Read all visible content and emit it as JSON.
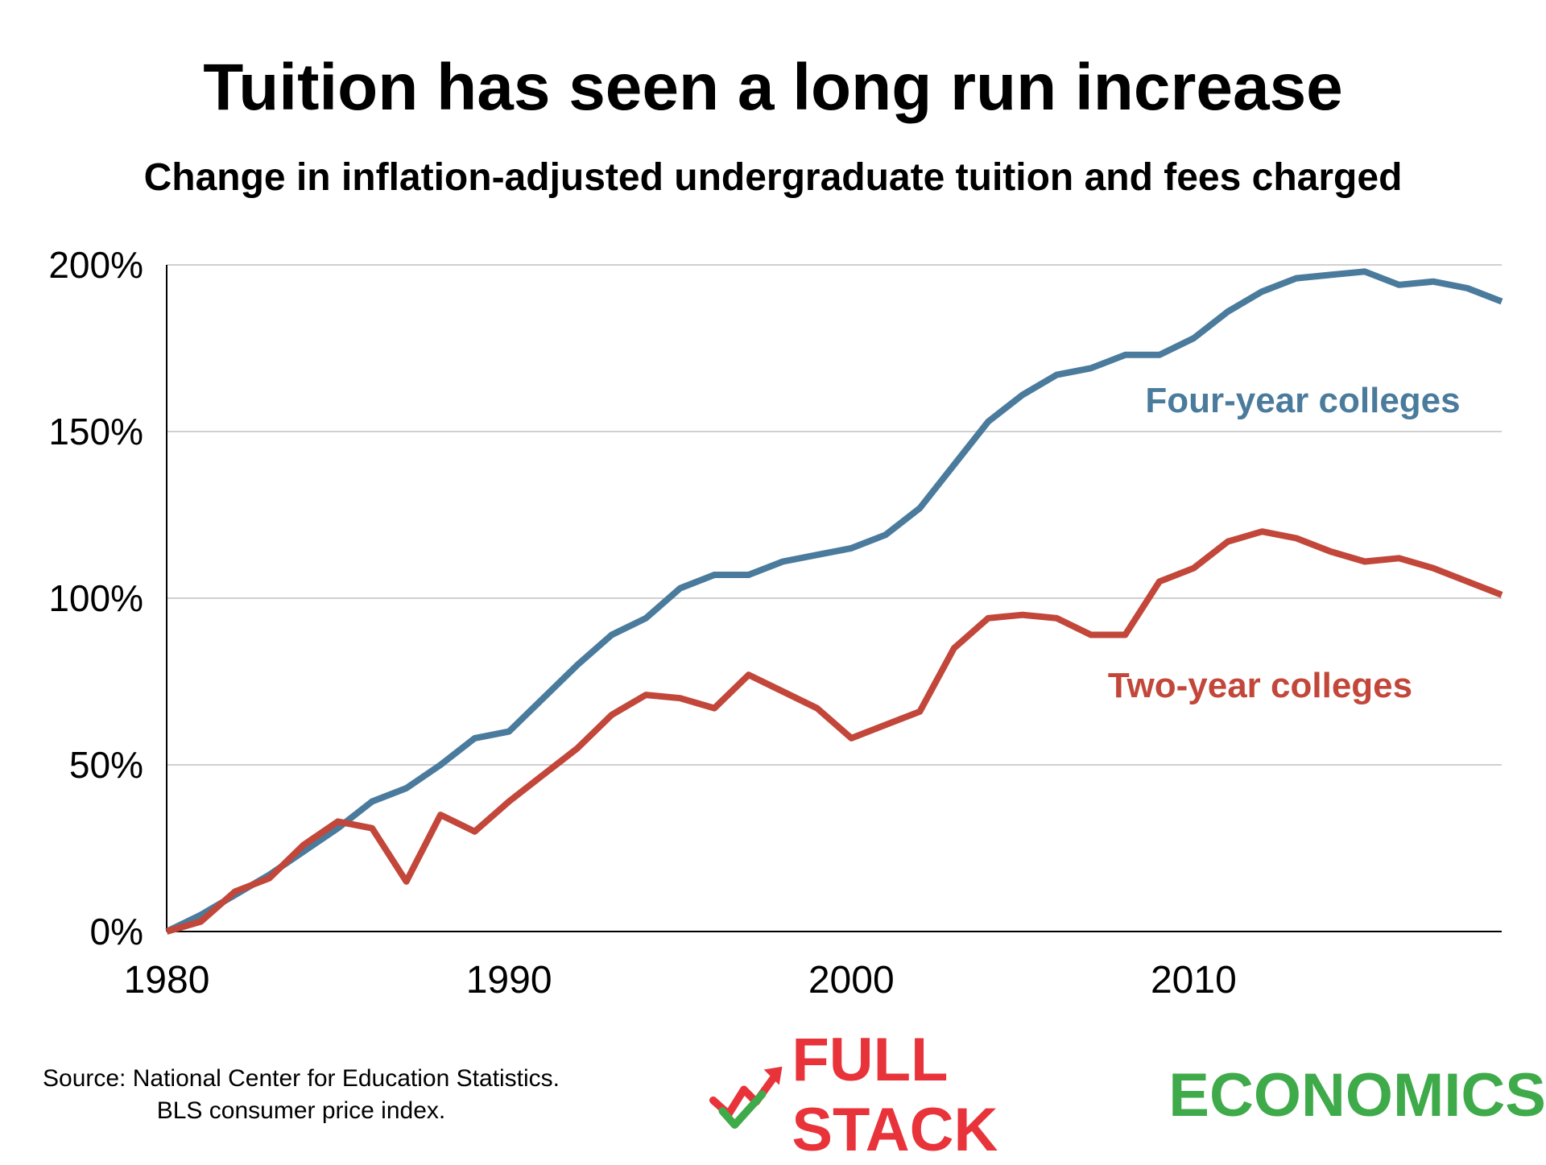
{
  "title": "Tuition has seen a long run increase",
  "subtitle": "Change in inflation-adjusted undergraduate tuition and fees charged",
  "source": {
    "line1": "Source: National Center for Education Statistics.",
    "line2": "BLS consumer price index."
  },
  "brand": {
    "word1": "FULL STACK",
    "word2": "ECONOMICS",
    "color1": "#e8333a",
    "color2": "#3faa4a"
  },
  "chart_data": {
    "type": "line",
    "title": "Tuition has seen a long run increase",
    "subtitle": "Change in inflation-adjusted undergraduate tuition and fees charged",
    "xlabel": "",
    "ylabel": "",
    "xlim": [
      1980,
      2019
    ],
    "ylim": [
      0,
      200
    ],
    "x_ticks": [
      1980,
      1990,
      2000,
      2010
    ],
    "y_ticks": [
      0,
      50,
      100,
      150,
      200
    ],
    "y_tick_labels": [
      "0%",
      "50%",
      "100%",
      "150%",
      "200%"
    ],
    "grid": "horizontal",
    "x": [
      1980,
      1981,
      1982,
      1983,
      1984,
      1985,
      1986,
      1987,
      1988,
      1989,
      1990,
      1991,
      1992,
      1993,
      1994,
      1995,
      1996,
      1997,
      1998,
      1999,
      2000,
      2001,
      2002,
      2003,
      2004,
      2005,
      2006,
      2007,
      2008,
      2009,
      2010,
      2011,
      2012,
      2013,
      2014,
      2015,
      2016,
      2017,
      2018,
      2019
    ],
    "series": [
      {
        "name": "Four-year colleges",
        "color": "#4a7b9d",
        "values": [
          0,
          5,
          11,
          17,
          24,
          31,
          39,
          43,
          50,
          58,
          60,
          70,
          80,
          89,
          94,
          103,
          107,
          107,
          111,
          113,
          115,
          119,
          127,
          140,
          153,
          161,
          167,
          169,
          173,
          173,
          178,
          186,
          192,
          196,
          197,
          198,
          194,
          195,
          193,
          189
        ]
      },
      {
        "name": "Two-year colleges",
        "color": "#c2473a",
        "values": [
          0,
          3,
          12,
          16,
          26,
          33,
          31,
          15,
          35,
          30,
          39,
          47,
          55,
          65,
          71,
          70,
          67,
          77,
          72,
          67,
          58,
          62,
          66,
          85,
          94,
          95,
          94,
          89,
          89,
          105,
          109,
          117,
          120,
          118,
          114,
          111,
          112,
          109,
          105,
          101
        ]
      }
    ]
  }
}
